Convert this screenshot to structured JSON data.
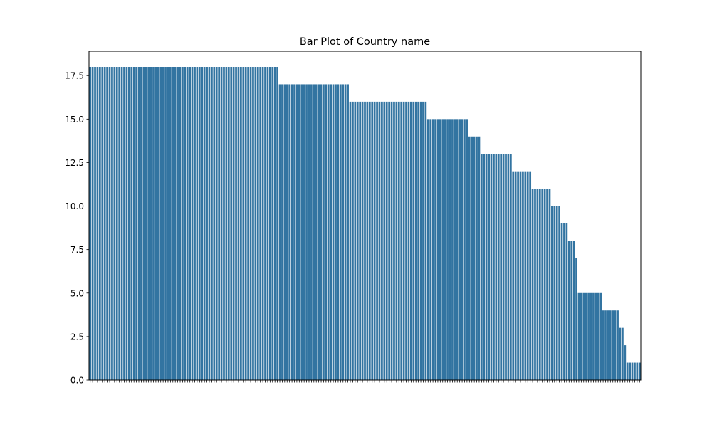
{
  "chart_data": {
    "type": "bar",
    "title": "Bar Plot of Country name",
    "xlabel": "",
    "ylabel": "",
    "ylim": [
      0,
      18.9
    ],
    "yticks": [
      0.0,
      2.5,
      5.0,
      7.5,
      10.0,
      12.5,
      15.0,
      17.5
    ],
    "ytick_labels": [
      "0.0",
      "2.5",
      "5.0",
      "7.5",
      "10.0",
      "12.5",
      "15.0",
      "17.5"
    ],
    "bar_color": "#3274a1",
    "grid": false,
    "legend": "none",
    "values": [
      18,
      18,
      18,
      18,
      18,
      18,
      18,
      18,
      18,
      18,
      18,
      18,
      18,
      18,
      18,
      18,
      18,
      18,
      18,
      18,
      18,
      18,
      18,
      18,
      18,
      18,
      18,
      18,
      18,
      18,
      18,
      18,
      18,
      18,
      18,
      18,
      18,
      18,
      18,
      18,
      18,
      18,
      18,
      18,
      18,
      18,
      18,
      18,
      18,
      18,
      18,
      18,
      18,
      18,
      18,
      18,
      18,
      18,
      18,
      18,
      18,
      18,
      18,
      18,
      18,
      18,
      18,
      18,
      18,
      18,
      18,
      18,
      18,
      18,
      18,
      18,
      18,
      18,
      17,
      17,
      17,
      17,
      17,
      17,
      17,
      17,
      17,
      17,
      17,
      17,
      17,
      17,
      17,
      17,
      17,
      17,
      17,
      17,
      17,
      17,
      17,
      17,
      17,
      17,
      17,
      17,
      17,
      16,
      16,
      16,
      16,
      16,
      16,
      16,
      16,
      16,
      16,
      16,
      16,
      16,
      16,
      16,
      16,
      16,
      16,
      16,
      16,
      16,
      16,
      16,
      16,
      16,
      16,
      16,
      16,
      16,
      16,
      16,
      16,
      15,
      15,
      15,
      15,
      15,
      15,
      15,
      15,
      15,
      15,
      15,
      15,
      15,
      15,
      15,
      15,
      15,
      14,
      14,
      14,
      14,
      14,
      13,
      13,
      13,
      13,
      13,
      13,
      13,
      13,
      13,
      13,
      13,
      13,
      13,
      12,
      12,
      12,
      12,
      12,
      12,
      12,
      12,
      11,
      11,
      11,
      11,
      11,
      11,
      11,
      11,
      10,
      10,
      10,
      10,
      9,
      9,
      9,
      8,
      8,
      8,
      7,
      5,
      5,
      5,
      5,
      5,
      5,
      5,
      5,
      5,
      5,
      4,
      4,
      4,
      4,
      4,
      4,
      4,
      3,
      3,
      2,
      1,
      1,
      1,
      1,
      1,
      1
    ],
    "categories": [
      "",
      "",
      "",
      "",
      "",
      "",
      "",
      "",
      "",
      "",
      "",
      "",
      "",
      "",
      "",
      "",
      "",
      "",
      "",
      "",
      "",
      "",
      "",
      "",
      "",
      "",
      "",
      "",
      "",
      "",
      "",
      "",
      "",
      "",
      "",
      "",
      "",
      "",
      "",
      "",
      "",
      "",
      "",
      "",
      "",
      "",
      "",
      "",
      "",
      "",
      "",
      "",
      "",
      "",
      "",
      "",
      "",
      "",
      "",
      "",
      "",
      "",
      "",
      "",
      "",
      "",
      "",
      "",
      "",
      "",
      "",
      "",
      "",
      "",
      "",
      "",
      "",
      "",
      "",
      "",
      "",
      "",
      "",
      "",
      "",
      "",
      "",
      "",
      "",
      "",
      "",
      "",
      "",
      "",
      "",
      "",
      "",
      "",
      "",
      "",
      "",
      "",
      "",
      "",
      "",
      "",
      "",
      "",
      "",
      "",
      "",
      "",
      "",
      "",
      "",
      "",
      "",
      "",
      "",
      "",
      "",
      "",
      "",
      "",
      "",
      "",
      "",
      "",
      "",
      "",
      "",
      "",
      "",
      "",
      "",
      "",
      "",
      "",
      "",
      "",
      "",
      "",
      "",
      "",
      "",
      "",
      "",
      "",
      "",
      "",
      "",
      "",
      "",
      "",
      "",
      "",
      "",
      "",
      "",
      "",
      "",
      "",
      "",
      "",
      "",
      "",
      "",
      "",
      "",
      "",
      "",
      "",
      "",
      "",
      "",
      "",
      "",
      "",
      "",
      "",
      "",
      "",
      "",
      "",
      "",
      "",
      "",
      "",
      "",
      "",
      "",
      "",
      "",
      "",
      "",
      "",
      "",
      "",
      "",
      "",
      "",
      "",
      "",
      "",
      "",
      "",
      "",
      "",
      "",
      "",
      "",
      "",
      "",
      "",
      "",
      "",
      "",
      "",
      "",
      "",
      "",
      "",
      "",
      "",
      "",
      "",
      ""
    ]
  }
}
